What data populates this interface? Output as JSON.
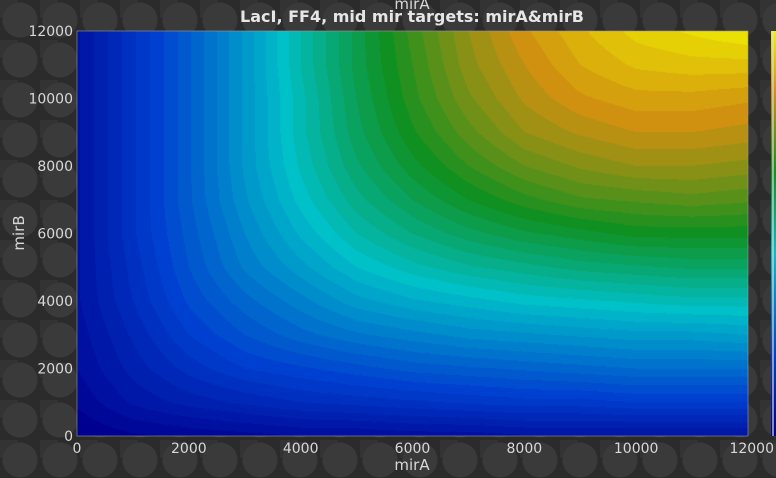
{
  "chart_data": {
    "type": "heatmap",
    "title": "LacI, FF4, mid mir targets: mirA&mirB",
    "top_label": "mirA",
    "xlabel": "mirA",
    "ylabel": "mirB",
    "xlim": [
      0,
      12000
    ],
    "ylim": [
      0,
      12000
    ],
    "x_ticks": [
      0,
      2000,
      4000,
      6000,
      8000,
      10000,
      12000
    ],
    "y_ticks": [
      0,
      2000,
      4000,
      6000,
      8000,
      10000,
      12000
    ],
    "x_tick_labels": [
      "0",
      "2000",
      "4000",
      "6000",
      "8000",
      "10000",
      "12000"
    ],
    "y_tick_labels": [
      "0",
      "2000",
      "4000",
      "6000",
      "8000",
      "10000",
      "12000"
    ],
    "grid": false,
    "colormap": [
      "#000090",
      "#0040d0",
      "#00c0c8",
      "#109020",
      "#d09010",
      "#f0f000"
    ],
    "x": [
      0,
      1000,
      2000,
      3000,
      4000,
      5000,
      6000,
      7000,
      8000,
      9000,
      10000,
      11000,
      12000
    ],
    "y": [
      0,
      1000,
      2000,
      3000,
      4000,
      5000,
      6000,
      7000,
      8000,
      9000,
      10000,
      11000,
      12000
    ],
    "z": [
      [
        0.0,
        0.02,
        0.03,
        0.04,
        0.05,
        0.05,
        0.06,
        0.06,
        0.07,
        0.07,
        0.07,
        0.07,
        0.07
      ],
      [
        0.03,
        0.08,
        0.11,
        0.13,
        0.15,
        0.16,
        0.17,
        0.18,
        0.19,
        0.19,
        0.2,
        0.2,
        0.2
      ],
      [
        0.05,
        0.11,
        0.16,
        0.2,
        0.22,
        0.24,
        0.26,
        0.27,
        0.28,
        0.29,
        0.3,
        0.3,
        0.3
      ],
      [
        0.06,
        0.13,
        0.2,
        0.25,
        0.29,
        0.32,
        0.34,
        0.36,
        0.37,
        0.38,
        0.39,
        0.39,
        0.4
      ],
      [
        0.07,
        0.15,
        0.23,
        0.29,
        0.34,
        0.39,
        0.42,
        0.44,
        0.46,
        0.47,
        0.48,
        0.49,
        0.49
      ],
      [
        0.07,
        0.16,
        0.25,
        0.33,
        0.39,
        0.45,
        0.49,
        0.52,
        0.54,
        0.56,
        0.57,
        0.58,
        0.58
      ],
      [
        0.07,
        0.17,
        0.26,
        0.35,
        0.43,
        0.5,
        0.55,
        0.59,
        0.62,
        0.64,
        0.66,
        0.66,
        0.66
      ],
      [
        0.07,
        0.17,
        0.27,
        0.37,
        0.46,
        0.54,
        0.6,
        0.65,
        0.69,
        0.72,
        0.73,
        0.74,
        0.73
      ],
      [
        0.07,
        0.17,
        0.27,
        0.38,
        0.48,
        0.57,
        0.64,
        0.7,
        0.75,
        0.78,
        0.8,
        0.8,
        0.79
      ],
      [
        0.07,
        0.17,
        0.27,
        0.38,
        0.49,
        0.59,
        0.67,
        0.74,
        0.8,
        0.83,
        0.85,
        0.85,
        0.84
      ],
      [
        0.07,
        0.17,
        0.27,
        0.38,
        0.49,
        0.6,
        0.69,
        0.77,
        0.83,
        0.87,
        0.89,
        0.89,
        0.88
      ],
      [
        0.07,
        0.17,
        0.27,
        0.38,
        0.5,
        0.61,
        0.7,
        0.79,
        0.85,
        0.9,
        0.93,
        0.94,
        0.94
      ],
      [
        0.07,
        0.17,
        0.27,
        0.38,
        0.5,
        0.61,
        0.71,
        0.8,
        0.87,
        0.92,
        0.96,
        0.98,
        1.0
      ]
    ]
  }
}
